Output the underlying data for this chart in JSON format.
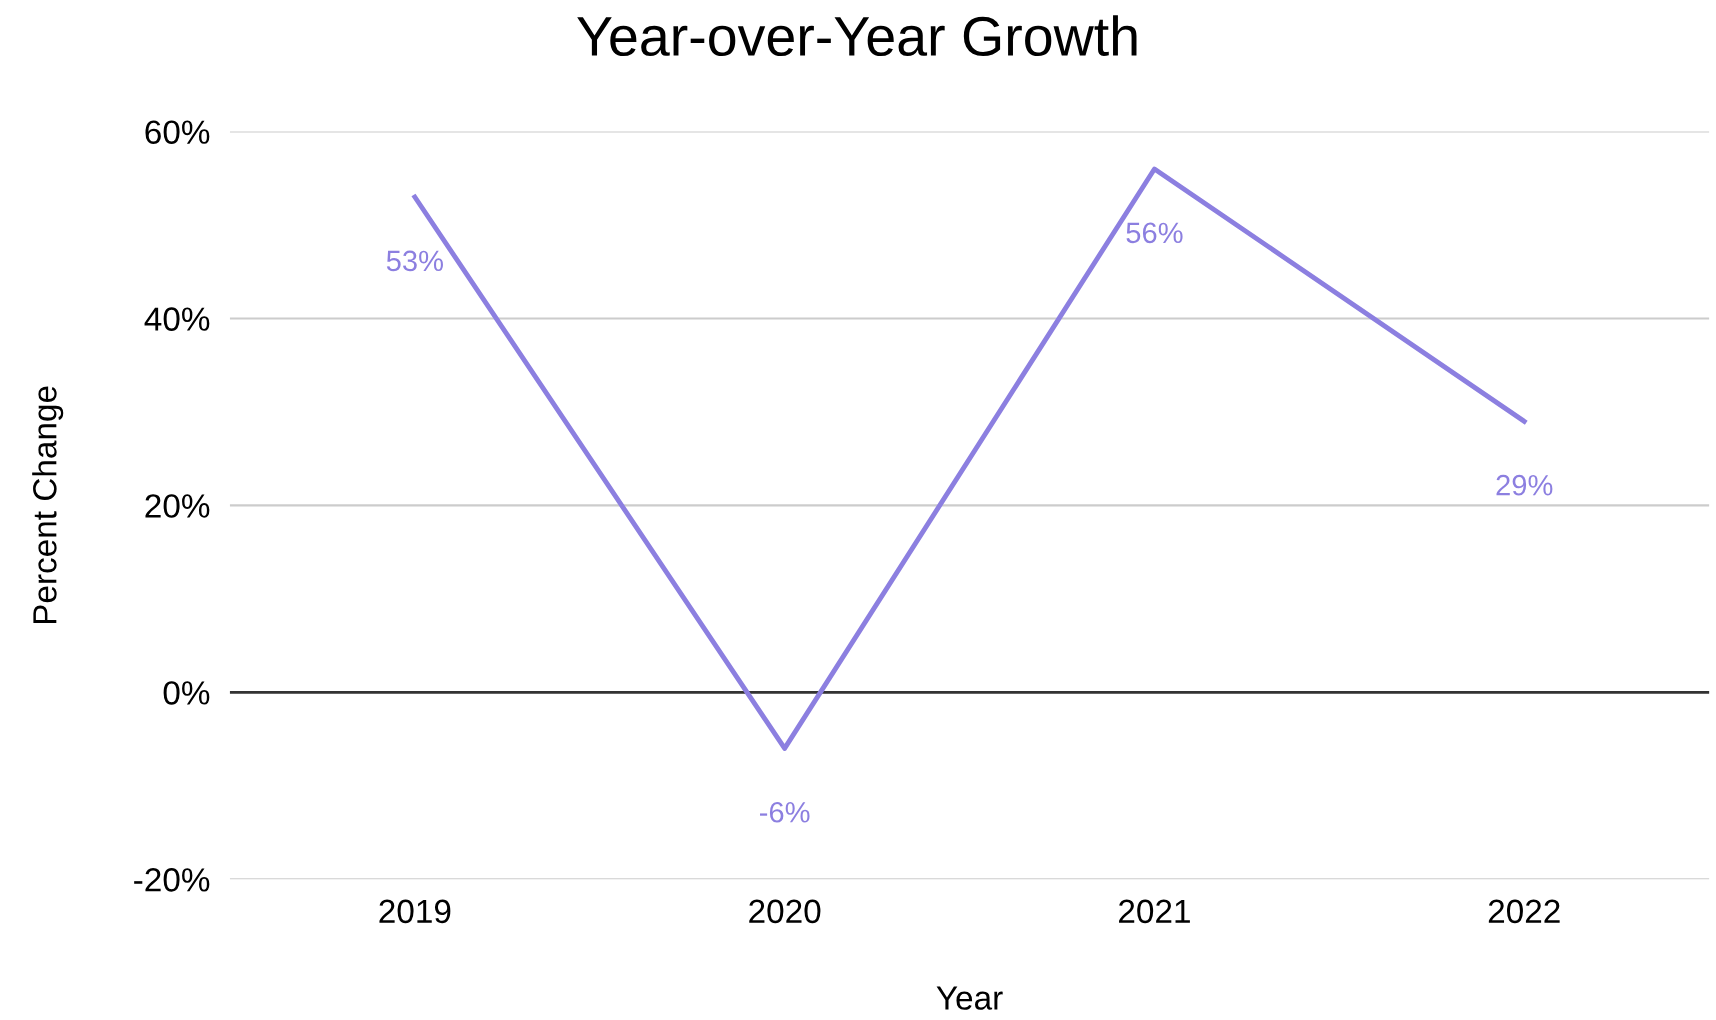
{
  "chart_data": {
    "type": "line",
    "title": "Year-over-Year Growth",
    "xlabel": "Year",
    "ylabel": "Percent Change",
    "categories": [
      "2019",
      "2020",
      "2021",
      "2022"
    ],
    "series": [
      {
        "color": "#8c7fe0",
        "values": [
          53,
          -6,
          56,
          29
        ],
        "value_labels": [
          "53%",
          "-6%",
          "56%",
          "29%"
        ]
      }
    ],
    "ylim": [
      -20,
      60
    ],
    "yticks": [
      {
        "value": -20,
        "label": "-20%"
      },
      {
        "value": 0,
        "label": "0%"
      },
      {
        "value": 20,
        "label": "20%"
      },
      {
        "value": 40,
        "label": "40%"
      },
      {
        "value": 60,
        "label": "60%"
      }
    ],
    "ref_lines": [
      {
        "axis": "y",
        "value": 0,
        "color": "#333333"
      }
    ],
    "grid": "y",
    "legend": false,
    "marker": "none",
    "line_style": "solid"
  }
}
